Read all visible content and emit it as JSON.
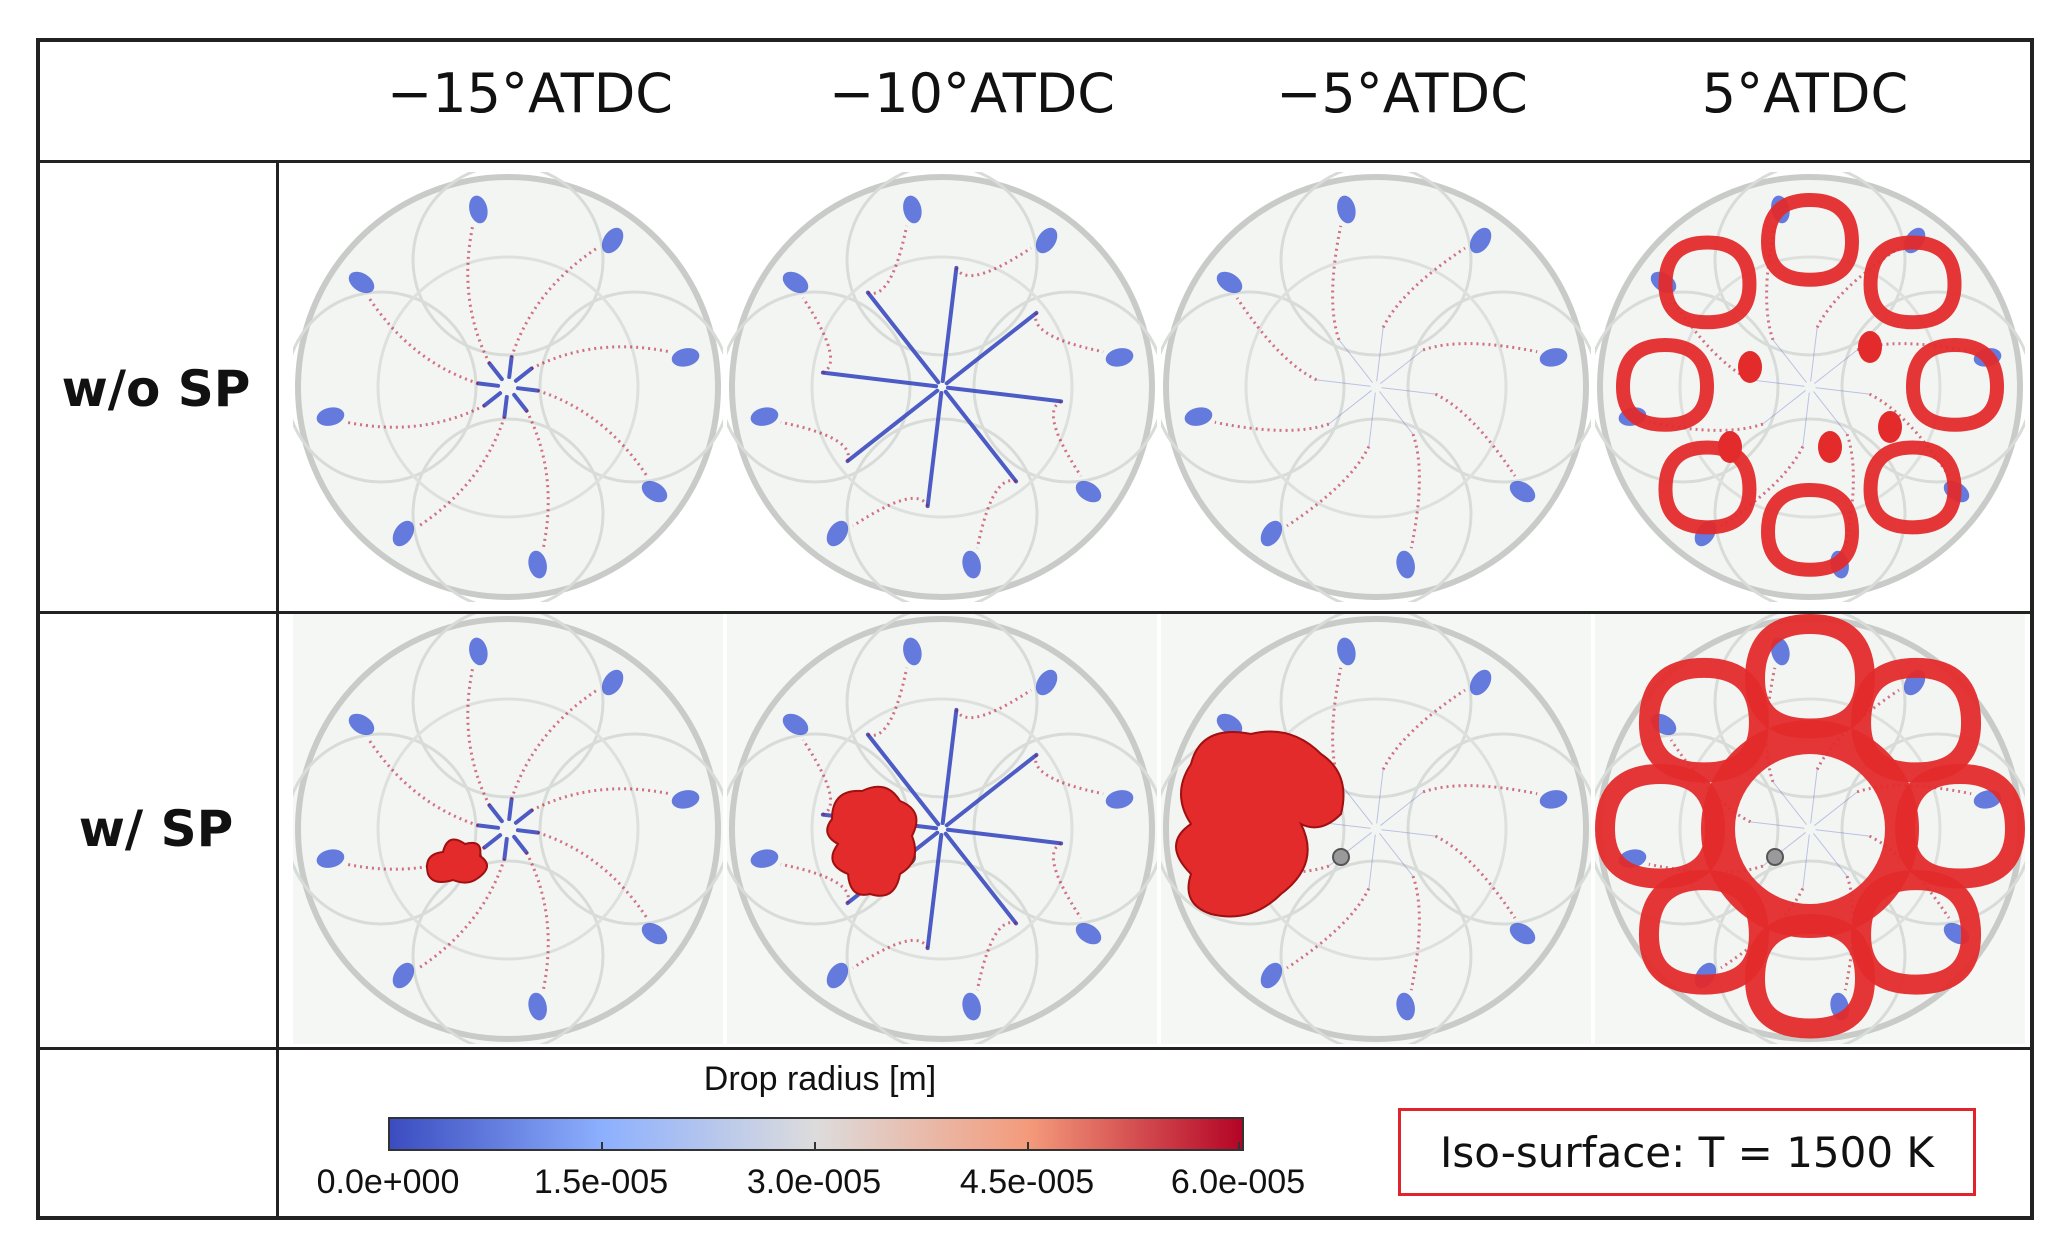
{
  "columns": [
    "−15°ATDC",
    "−10°ATDC",
    "−5°ATDC",
    "5°ATDC"
  ],
  "rows": [
    "w/o SP",
    "w/ SP"
  ],
  "colorbar": {
    "title": "Drop radius [m]",
    "ticks": [
      "0.0e+000",
      "1.5e-005",
      "3.0e-005",
      "4.5e-005",
      "6.0e-005"
    ],
    "colors": [
      "#3b4cc0",
      "#8db0fe",
      "#dddcdc",
      "#f49a7b",
      "#b40426"
    ]
  },
  "iso_label": "Iso-surface: T = 1500 K",
  "iso_color": "#e32b2b",
  "panels": [
    {
      "row": 0,
      "col": 0,
      "spray": "short",
      "flame": "none"
    },
    {
      "row": 0,
      "col": 1,
      "spray": "long",
      "flame": "none"
    },
    {
      "row": 0,
      "col": 2,
      "spray": "faint",
      "flame": "none"
    },
    {
      "row": 0,
      "col": 3,
      "spray": "faint",
      "flame": "ring"
    },
    {
      "row": 1,
      "col": 0,
      "spray": "short",
      "flame": "kernel-small"
    },
    {
      "row": 1,
      "col": 1,
      "spray": "long",
      "flame": "kernel-medium"
    },
    {
      "row": 1,
      "col": 2,
      "spray": "faint",
      "flame": "kernel-large"
    },
    {
      "row": 1,
      "col": 3,
      "spray": "faint",
      "flame": "ring-dense"
    }
  ]
}
